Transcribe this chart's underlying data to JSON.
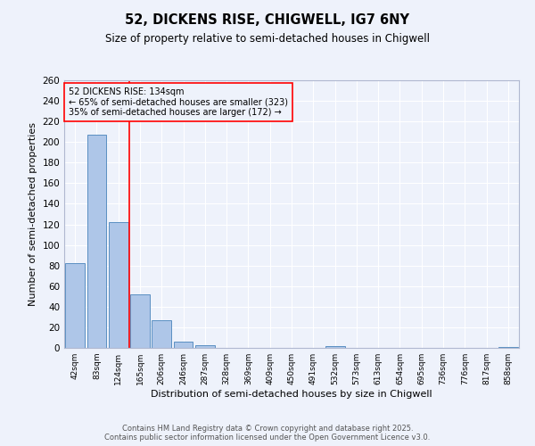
{
  "title": "52, DICKENS RISE, CHIGWELL, IG7 6NY",
  "subtitle": "Size of property relative to semi-detached houses in Chigwell",
  "xlabel": "Distribution of semi-detached houses by size in Chigwell",
  "ylabel": "Number of semi-detached properties",
  "categories": [
    "42sqm",
    "83sqm",
    "124sqm",
    "165sqm",
    "206sqm",
    "246sqm",
    "287sqm",
    "328sqm",
    "369sqm",
    "409sqm",
    "450sqm",
    "491sqm",
    "532sqm",
    "573sqm",
    "613sqm",
    "654sqm",
    "695sqm",
    "736sqm",
    "776sqm",
    "817sqm",
    "858sqm"
  ],
  "values": [
    82,
    207,
    122,
    52,
    27,
    6,
    3,
    0,
    0,
    0,
    0,
    0,
    2,
    0,
    0,
    0,
    0,
    0,
    0,
    0,
    1
  ],
  "bar_color": "#aec6e8",
  "bar_edge_color": "#5a8fc2",
  "red_line_x": 2.5,
  "annotation_text_line1": "52 DICKENS RISE: 134sqm",
  "annotation_text_line2": "← 65% of semi-detached houses are smaller (323)",
  "annotation_text_line3": "35% of semi-detached houses are larger (172) →",
  "ylim": [
    0,
    260
  ],
  "yticks": [
    0,
    20,
    40,
    60,
    80,
    100,
    120,
    140,
    160,
    180,
    200,
    220,
    240,
    260
  ],
  "bg_color": "#eef2fb",
  "grid_color": "#ffffff",
  "footer_line1": "Contains HM Land Registry data © Crown copyright and database right 2025.",
  "footer_line2": "Contains public sector information licensed under the Open Government Licence v3.0."
}
